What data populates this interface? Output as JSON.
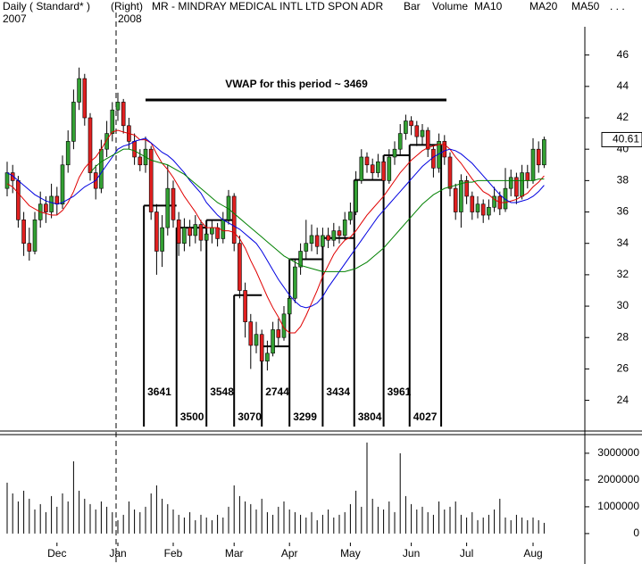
{
  "header": {
    "period": "Daily ( Standard* )",
    "axis_side": "(Right)",
    "symbol": "MR - MINDRAY MEDICAL INTL LTD SPON ADR",
    "style": "Bar",
    "volume": "Volume",
    "more": ". . .",
    "years": [
      "2007",
      "2008"
    ]
  },
  "chart_data": [
    {
      "type": "candlestick",
      "ylim": [
        22.1,
        47.8
      ],
      "yticks": [
        24,
        26,
        28,
        30,
        32,
        34,
        36,
        38,
        40,
        42,
        44,
        46
      ],
      "up_color": "#33a033",
      "down_color": "#e02020",
      "open": [
        37.5,
        38.5,
        38,
        35.5,
        34,
        33.5,
        35.5,
        36.5,
        36,
        37,
        36.5,
        39,
        40.5,
        43,
        44.5,
        42,
        38.5,
        37.5,
        40,
        41,
        42.5,
        43,
        41.5,
        40.5,
        39.5,
        39,
        40,
        36,
        33.5,
        35,
        37.5,
        35.5,
        34,
        35,
        34.5,
        35.2,
        34.2,
        34.6,
        35,
        34.3,
        35.5,
        37,
        34,
        31,
        29,
        27.5,
        28.2,
        26.5,
        27,
        28.5,
        28,
        29.5,
        30.5,
        32.5,
        33.5,
        34,
        34.5,
        33.8,
        34.5,
        34.2,
        34.8,
        34.5,
        35.5,
        36,
        38,
        39.5,
        39,
        38.5,
        39.2,
        38,
        39.5,
        40,
        41,
        41.8,
        41.5,
        40.8,
        41.2,
        40,
        38.8,
        40.5,
        39.5,
        37.5,
        36,
        38,
        37,
        36,
        36.5,
        35.8,
        36.3,
        37,
        36.2,
        37.5,
        38.2,
        37,
        38.5,
        38,
        40,
        39
      ],
      "high": [
        39.2,
        39,
        38.3,
        36,
        35,
        36,
        37.3,
        37,
        37.8,
        37.6,
        39.6,
        41.2,
        43.8,
        45.2,
        44.8,
        42.3,
        39,
        40.6,
        41.8,
        43,
        43.6,
        43.2,
        42,
        41,
        40,
        40.8,
        40.2,
        36.5,
        35.8,
        39,
        38,
        36,
        35.6,
        35.5,
        35.8,
        35.5,
        35.2,
        35.5,
        35.3,
        36,
        37.4,
        37.2,
        34.5,
        31.5,
        29.5,
        29,
        28.5,
        27.8,
        29,
        29.2,
        30,
        31,
        33,
        34,
        35.5,
        35.2,
        35,
        35,
        35,
        35.3,
        35.1,
        36,
        36.6,
        38.6,
        40,
        39.8,
        39.4,
        39.7,
        39.5,
        40,
        40.5,
        41.6,
        42.2,
        42.1,
        41.8,
        41.6,
        41.4,
        40.3,
        41,
        40.9,
        39.8,
        37.8,
        38.4,
        38.3,
        37.3,
        37,
        36.8,
        36.8,
        37.6,
        37.3,
        38.8,
        38.7,
        38.5,
        39,
        39,
        40.7,
        40.5,
        40.8
      ],
      "low": [
        37,
        37.2,
        35,
        33.2,
        32.9,
        33.3,
        35,
        35.3,
        35.6,
        35.8,
        36.2,
        38.5,
        40,
        42.5,
        41.5,
        38,
        36.8,
        37.2,
        39.5,
        40.5,
        41.8,
        41,
        40,
        39,
        38.6,
        38.5,
        35.5,
        32,
        32.5,
        34.5,
        35,
        33.2,
        33.5,
        33.8,
        34,
        33.5,
        33.8,
        34,
        33.8,
        34,
        35.2,
        33.5,
        30.5,
        28,
        26,
        27,
        25.8,
        25.9,
        26.8,
        27.5,
        27.8,
        29,
        30.2,
        32,
        33,
        33.5,
        33.3,
        33.5,
        33.7,
        33.8,
        34,
        34.2,
        35.2,
        35.8,
        37.8,
        38.5,
        38,
        38.2,
        37.6,
        37.8,
        39,
        39.6,
        40.6,
        40.9,
        40.2,
        40.3,
        39.5,
        38.2,
        38.5,
        39,
        37,
        35.5,
        35,
        36.5,
        35.5,
        35.6,
        35.3,
        35.5,
        36,
        35.8,
        36,
        37,
        36.5,
        36.8,
        37.5,
        37.8,
        38.5,
        38.8
      ],
      "close": [
        38.5,
        38,
        35.5,
        34,
        33.5,
        35.5,
        36.5,
        36,
        37,
        36.5,
        39,
        40.5,
        43,
        44.5,
        42,
        38.5,
        37.5,
        40,
        41,
        42.5,
        43,
        41.5,
        40.5,
        39.5,
        39,
        40,
        36,
        33.5,
        35,
        37.5,
        35.5,
        34,
        35,
        34.5,
        35.2,
        34.2,
        34.6,
        35,
        34.3,
        35.5,
        37,
        34,
        31,
        29,
        27.5,
        28.2,
        26.5,
        27,
        28.5,
        28,
        29.5,
        30.5,
        32.5,
        33.5,
        34,
        34.5,
        33.8,
        34.5,
        34.2,
        34.8,
        34.5,
        35.5,
        36,
        38,
        39.5,
        39,
        38.5,
        39.2,
        38,
        39.5,
        40,
        41,
        41.8,
        41.5,
        40.8,
        41.2,
        40,
        38.8,
        40.5,
        39.5,
        37.5,
        36,
        38,
        37,
        36,
        36.5,
        35.8,
        36.3,
        37,
        36.2,
        37.5,
        38.2,
        37,
        38.5,
        38,
        40,
        39,
        40.61
      ],
      "series": [
        {
          "name": "MA10",
          "color": "#e00000",
          "values": [
            37.8,
            37.6,
            37.2,
            36.8,
            36.4,
            36.2,
            36.0,
            35.9,
            35.8,
            35.8,
            36.1,
            36.6,
            37.3,
            38.2,
            38.8,
            39.2,
            39.5,
            40.0,
            40.6,
            41.1,
            41.2,
            41.1,
            41.0,
            40.9,
            40.6,
            40.6,
            40.4,
            39.7,
            39.1,
            38.7,
            38.2,
            37.6,
            37.0,
            36.5,
            36.0,
            35.4,
            35.0,
            35.0,
            35.0,
            34.8,
            34.8,
            34.7,
            34.3,
            33.7,
            32.9,
            32.2,
            31.4,
            30.6,
            29.9,
            29.3,
            28.6,
            28.3,
            28.3,
            28.7,
            29.4,
            30.2,
            31.0,
            31.9,
            32.6,
            33.3,
            33.8,
            34.2,
            34.4,
            34.8,
            35.3,
            35.8,
            36.2,
            36.6,
            37.0,
            37.5,
            38.0,
            38.5,
            38.9,
            39.3,
            39.6,
            39.9,
            40.1,
            40.2,
            40.3,
            40.3,
            40.0,
            39.5,
            39.1,
            38.6,
            38.1,
            37.7,
            37.3,
            37.1,
            36.8,
            36.6,
            36.6,
            36.7,
            36.8,
            37.0,
            37.2,
            37.6,
            37.9,
            38.3
          ]
        },
        {
          "name": "MA20",
          "color": "#0000e0",
          "values": [
            38.5,
            38.3,
            38.0,
            37.7,
            37.4,
            37.1,
            36.9,
            36.7,
            36.6,
            36.5,
            36.6,
            36.8,
            37.0,
            37.3,
            37.6,
            37.8,
            38.0,
            38.5,
            39.0,
            39.5,
            40.0,
            40.2,
            40.3,
            40.5,
            40.6,
            40.7,
            40.4,
            40.1,
            39.8,
            39.6,
            39.3,
            38.9,
            38.5,
            38.0,
            37.6,
            37.2,
            36.6,
            36.2,
            35.8,
            35.5,
            35.3,
            35.1,
            34.9,
            34.6,
            34.3,
            34.0,
            33.5,
            32.9,
            32.3,
            31.7,
            31.2,
            30.7,
            30.3,
            30.0,
            29.9,
            30.0,
            30.2,
            30.6,
            31.2,
            31.7,
            32.2,
            32.7,
            33.2,
            33.7,
            34.2,
            34.7,
            35.2,
            35.7,
            36.1,
            36.5,
            36.9,
            37.3,
            37.7,
            38.1,
            38.5,
            38.9,
            39.2,
            39.5,
            39.7,
            39.9,
            40.0,
            39.9,
            39.7,
            39.4,
            39.1,
            38.7,
            38.3,
            37.9,
            37.5,
            37.1,
            36.8,
            36.6,
            36.6,
            36.7,
            36.8,
            37.0,
            37.3,
            37.7
          ]
        },
        {
          "name": "MA50",
          "color": "#008000",
          "values": [
            null,
            null,
            null,
            null,
            null,
            null,
            null,
            null,
            null,
            null,
            null,
            null,
            null,
            null,
            null,
            38.5,
            38.9,
            39.2,
            39.4,
            39.6,
            39.8,
            40.0,
            40.0,
            39.9,
            39.7,
            39.5,
            39.3,
            39.2,
            39.1,
            39.0,
            38.8,
            38.6,
            38.4,
            38.1,
            37.8,
            37.5,
            37.2,
            36.9,
            36.6,
            36.4,
            36.2,
            35.9,
            35.6,
            35.3,
            35.0,
            34.7,
            34.4,
            34.1,
            33.8,
            33.5,
            33.2,
            33.0,
            32.8,
            32.6,
            32.5,
            32.4,
            32.3,
            32.2,
            32.2,
            32.2,
            32.2,
            32.2,
            32.3,
            32.4,
            32.6,
            32.8,
            33.1,
            33.4,
            33.7,
            34.1,
            34.5,
            34.9,
            35.3,
            35.7,
            36.1,
            36.5,
            36.8,
            37.1,
            37.3,
            37.5,
            37.6,
            37.7,
            37.8,
            37.9,
            37.9,
            38.0,
            38.0,
            38.0,
            38.0,
            38.0,
            38.0,
            38.0,
            38.0,
            38.0,
            38.0,
            38.0,
            38.1,
            38.1
          ]
        }
      ],
      "vwap": {
        "label": "VWAP for this period ~ 3469",
        "values": [
          36.41,
          35.0,
          35.48,
          30.7,
          27.44,
          32.99,
          34.34,
          38.04,
          39.61,
          40.27
        ],
        "value_labels": [
          "3641",
          "3500",
          "3548",
          "3070",
          "2744",
          "3299",
          "3434",
          "3804",
          "3961",
          "4027"
        ]
      }
    },
    {
      "type": "bar",
      "color": "#000000",
      "ylim": [
        -470000,
        3530000
      ],
      "yticks": [
        0,
        1000000,
        2000000,
        3000000
      ],
      "categories": [
        null,
        null,
        null,
        null,
        null,
        null,
        null,
        null,
        null,
        "Dec",
        null,
        null,
        null,
        null,
        null,
        null,
        null,
        null,
        null,
        null,
        "Jan",
        null,
        null,
        null,
        null,
        null,
        null,
        null,
        null,
        null,
        "Feb",
        null,
        null,
        null,
        null,
        null,
        null,
        null,
        null,
        null,
        null,
        "Mar",
        null,
        null,
        null,
        null,
        null,
        null,
        null,
        null,
        null,
        "Apr",
        null,
        null,
        null,
        null,
        null,
        null,
        null,
        null,
        null,
        null,
        "May",
        null,
        null,
        null,
        null,
        null,
        null,
        null,
        null,
        null,
        null,
        "Jun",
        null,
        null,
        null,
        null,
        null,
        null,
        null,
        null,
        null,
        "Jul",
        null,
        null,
        null,
        null,
        null,
        null,
        null,
        null,
        null,
        null,
        null,
        "Aug",
        null,
        null
      ],
      "values": [
        1900000,
        1500000,
        1200000,
        1600000,
        1300000,
        900000,
        1100000,
        800000,
        1400000,
        1000000,
        1500000,
        1200000,
        2700000,
        1600000,
        1300000,
        1100000,
        900000,
        1200000,
        1000000,
        800000,
        500000,
        700000,
        1200000,
        900000,
        800000,
        1000000,
        1500000,
        1800000,
        1300000,
        1100000,
        900000,
        700000,
        600000,
        800000,
        500000,
        700000,
        600000,
        500000,
        700000,
        600000,
        1000000,
        1800000,
        1400000,
        1200000,
        1100000,
        900000,
        1300000,
        800000,
        700000,
        1000000,
        1200000,
        900000,
        800000,
        700000,
        600000,
        800000,
        500000,
        700000,
        900000,
        600000,
        700000,
        800000,
        1100000,
        1600000,
        1000000,
        3400000,
        1300000,
        1000000,
        900000,
        1200000,
        800000,
        3000000,
        1400000,
        1100000,
        900000,
        1000000,
        800000,
        700000,
        1200000,
        900000,
        1000000,
        1200000,
        700000,
        600000,
        800000,
        500000,
        600000,
        700000,
        900000,
        1300000,
        600000,
        500000,
        700000,
        600000,
        500000,
        600000,
        500000,
        400000
      ]
    }
  ]
}
